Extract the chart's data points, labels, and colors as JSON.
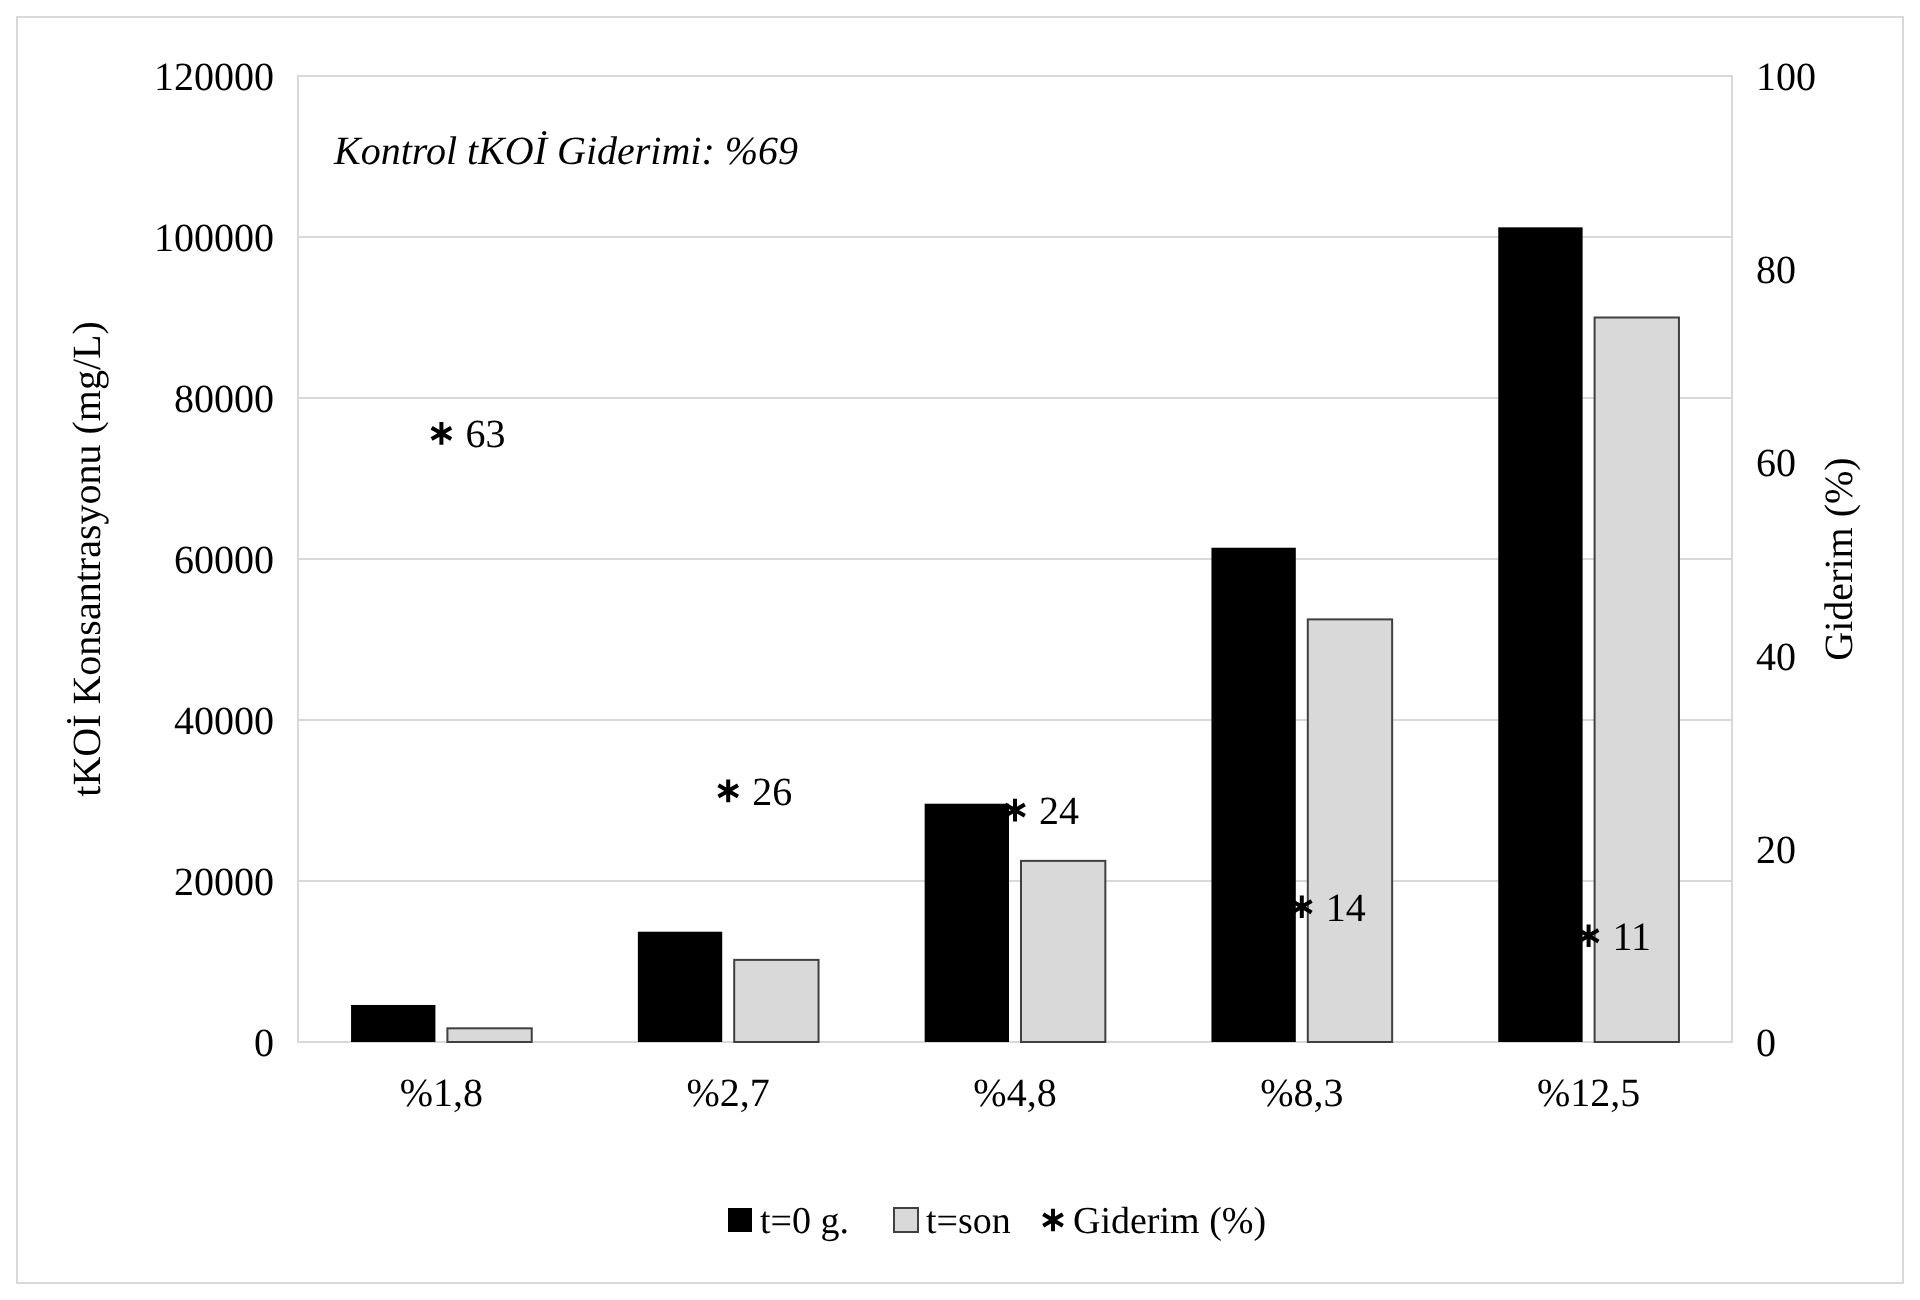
{
  "chart_data": {
    "type": "bar",
    "categories": [
      "%1,8",
      "%2,7",
      "%4,8",
      "%8,3",
      "%12,5"
    ],
    "ylabel": "tKOİ Konsantrasyonu (mg/L)",
    "y2label": "Giderim (%)",
    "series": [
      {
        "name": "t=0 g.",
        "color": "#000000",
        "values": [
          4600,
          13700,
          29600,
          61400,
          101200
        ]
      },
      {
        "name": "t=son",
        "color": "#d9d9d9",
        "values": [
          1700,
          10200,
          22500,
          52500,
          90000
        ]
      },
      {
        "name": "Giderim (%)",
        "type": "scatter",
        "axis": "y2",
        "color": "#000000",
        "marker": "cross",
        "data_labels": true,
        "values": [
          63,
          26,
          24,
          14,
          11
        ]
      }
    ],
    "ylim": [
      0,
      120000
    ],
    "yticks": [
      0,
      20000,
      40000,
      60000,
      80000,
      100000,
      120000
    ],
    "y2lim": [
      0,
      100
    ],
    "y2ticks": [
      0,
      20,
      40,
      60,
      80,
      100
    ],
    "annotations": [
      "Kontrol tKOİ Giderimi: %69"
    ],
    "grid": "y",
    "legend": "bottom"
  }
}
